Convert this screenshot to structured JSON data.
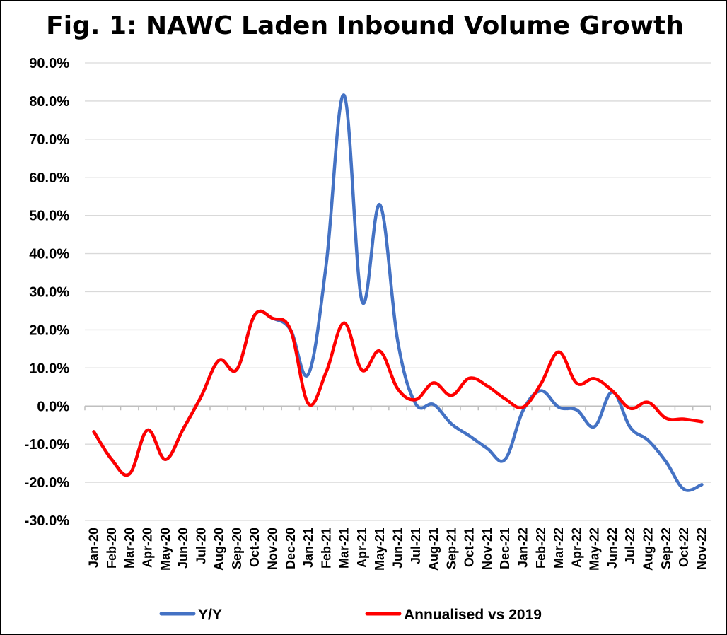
{
  "chart_data": {
    "type": "line",
    "title": "Fig. 1: NAWC Laden Inbound Volume Growth",
    "xlabel": "",
    "ylabel": "",
    "ylim": [
      -30,
      90
    ],
    "ytick_step": 10,
    "ytick_labels": [
      "90.0%",
      "80.0%",
      "70.0%",
      "60.0%",
      "50.0%",
      "40.0%",
      "30.0%",
      "20.0%",
      "10.0%",
      "0.0%",
      "-10.0%",
      "-20.0%",
      "-30.0%"
    ],
    "grid": true,
    "legend_position": "bottom",
    "categories": [
      "Jan-20",
      "Feb-20",
      "Mar-20",
      "Apr-20",
      "May-20",
      "Jun-20",
      "Jul-20",
      "Aug-20",
      "Sep-20",
      "Oct-20",
      "Nov-20",
      "Dec-20",
      "Jan-21",
      "Feb-21",
      "Mar-21",
      "Apr-21",
      "May-21",
      "Jun-21",
      "Jul-21",
      "Aug-21",
      "Sep-21",
      "Oct-21",
      "Nov-21",
      "Dec-21",
      "Jan-22",
      "Feb-22",
      "Mar-22",
      "Apr-22",
      "May-22",
      "Jun-22",
      "Jul-22",
      "Aug-22",
      "Sep-22",
      "Oct-22",
      "Nov-22"
    ],
    "series": [
      {
        "name": "Y/Y",
        "color": "#4472C4",
        "values": [
          -6.7,
          -14.0,
          -17.8,
          -6.3,
          -14.0,
          -6.0,
          2.5,
          12.0,
          9.6,
          23.9,
          23.0,
          20.0,
          8.4,
          37.4,
          81.5,
          27.5,
          52.8,
          16.9,
          0.6,
          0.4,
          -4.7,
          -7.8,
          -11.1,
          -14.0,
          -1.2,
          4.0,
          -0.3,
          -1.0,
          -5.4,
          3.7,
          -5.6,
          -9.0,
          -14.6,
          -21.8,
          -20.6
        ]
      },
      {
        "name": "Annualised vs 2019",
        "color": "#FF0000",
        "values": [
          -6.7,
          -14.0,
          -17.8,
          -6.3,
          -14.0,
          -6.0,
          2.5,
          12.0,
          9.6,
          23.9,
          23.0,
          20.0,
          0.6,
          9.0,
          21.8,
          9.4,
          14.4,
          4.5,
          1.7,
          6.1,
          2.8,
          7.3,
          5.3,
          1.9,
          -0.3,
          5.8,
          14.2,
          6.0,
          7.2,
          4.0,
          -0.6,
          1.0,
          -3.2,
          -3.4,
          -4.1
        ]
      }
    ]
  }
}
